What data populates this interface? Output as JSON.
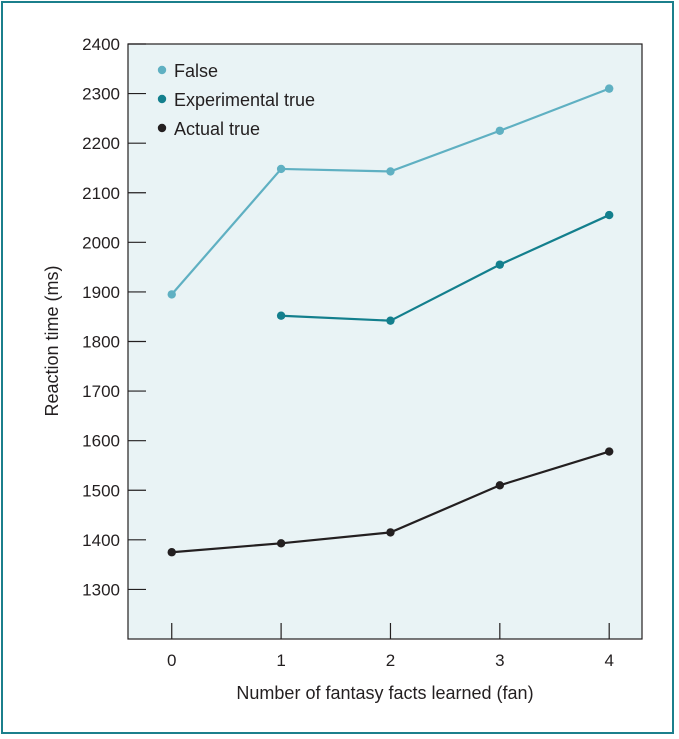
{
  "chart_data": {
    "type": "line",
    "title": "",
    "xlabel": "Number of fantasy facts learned (fan)",
    "ylabel": "Reaction time (ms)",
    "x": [
      0,
      1,
      2,
      3,
      4
    ],
    "xlim": [
      -0.4,
      4.3
    ],
    "ylim": [
      1200,
      2400
    ],
    "yticks": [
      1300,
      1400,
      1500,
      1600,
      1700,
      1800,
      1900,
      2000,
      2100,
      2200,
      2300,
      2400
    ],
    "grid": false,
    "legend_position": "top-left",
    "background_color": "#e9f3f5",
    "series": [
      {
        "name": "False",
        "color": "#5fb0c2",
        "values": [
          1895,
          2148,
          2143,
          2225,
          2310
        ]
      },
      {
        "name": "Experimental true",
        "color": "#137f8d",
        "values": [
          null,
          1852,
          1842,
          1955,
          2055
        ]
      },
      {
        "name": "Actual true",
        "color": "#231f20",
        "values": [
          1375,
          1393,
          1415,
          1510,
          1578
        ]
      }
    ]
  }
}
